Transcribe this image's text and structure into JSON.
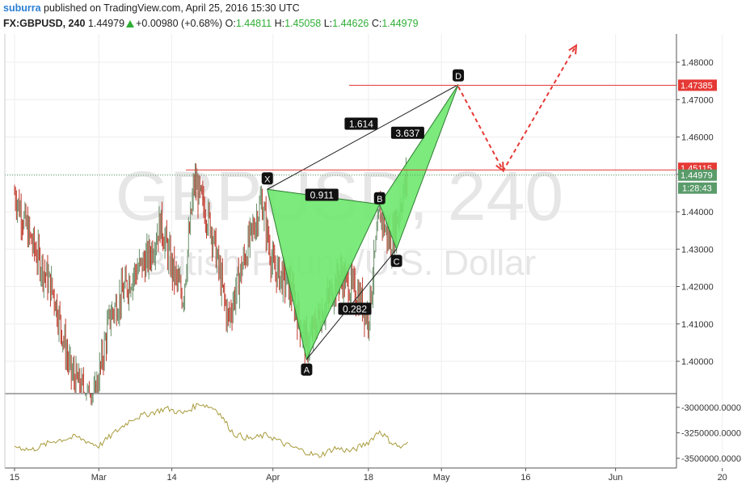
{
  "header": {
    "user": "suburra",
    "published_text": " published on TradingView.com, April 25, 2016 15:30 UTC",
    "symbol_tf": "FX:GBPUSD, 240",
    "last": "1.44979",
    "change": "+0.00980 (+0.68%)",
    "o_label": "O:",
    "o_val": "1.44811",
    "h_label": "H:",
    "h_val": "1.45058",
    "l_label": "L:",
    "l_val": "1.44626",
    "c_label": "C:",
    "c_val": "1.44979"
  },
  "watermark": {
    "symbol": "GBPUSD, 240",
    "description": "British Pound/U.S. Dollar"
  },
  "colors": {
    "up": "#2fae35",
    "candle_up": "#6b8f6b",
    "candle_down": "#c0392b",
    "pattern_fill": "#6ee86e",
    "level_line": "#e53935",
    "indicator": "#a89b3c",
    "current_price_bg": "#5a9b6a"
  },
  "chart_data": {
    "type": "candlestick",
    "symbol": "FX:GBPUSD",
    "timeframe": "240",
    "price_axis": {
      "ylim": [
        1.393,
        1.4875
      ],
      "ticks": [
        "1.48000",
        "1.47000",
        "1.46000",
        "1.45000",
        "1.44000",
        "1.43000",
        "1.42000",
        "1.41000",
        "1.40000"
      ]
    },
    "time_axis": {
      "ticks": [
        "15",
        "Mar",
        "14",
        "Apr",
        "18",
        "May",
        "16",
        "Jun",
        "20"
      ],
      "range": [
        "2016-02-15",
        "2016-06-25"
      ]
    },
    "price_path": [
      [
        "2016-02-15",
        1.445
      ],
      [
        "2016-02-18",
        1.432
      ],
      [
        "2016-02-22",
        1.418
      ],
      [
        "2016-02-25",
        1.397
      ],
      [
        "2016-02-29",
        1.388
      ],
      [
        "2016-03-03",
        1.412
      ],
      [
        "2016-03-07",
        1.423
      ],
      [
        "2016-03-10",
        1.428
      ],
      [
        "2016-03-12",
        1.437
      ],
      [
        "2016-03-14",
        1.425
      ],
      [
        "2016-03-16",
        1.417
      ],
      [
        "2016-03-18",
        1.448
      ],
      [
        "2016-03-21",
        1.436
      ],
      [
        "2016-03-24",
        1.411
      ],
      [
        "2016-03-27",
        1.428
      ],
      [
        "2016-03-30",
        1.443
      ],
      [
        "2016-04-01",
        1.425
      ],
      [
        "2016-04-04",
        1.42
      ],
      [
        "2016-04-07",
        1.404
      ],
      [
        "2016-04-10",
        1.414
      ],
      [
        "2016-04-13",
        1.423
      ],
      [
        "2016-04-16",
        1.418
      ],
      [
        "2016-04-18",
        1.412
      ],
      [
        "2016-04-20",
        1.44
      ],
      [
        "2016-04-22",
        1.431
      ],
      [
        "2016-04-25",
        1.45
      ]
    ],
    "pattern": {
      "points": [
        {
          "name": "X",
          "date": "2016-03-31",
          "price": 1.446
        },
        {
          "name": "A",
          "date": "2016-04-07",
          "price": 1.4005
        },
        {
          "name": "B",
          "date": "2016-04-20",
          "price": 1.442
        },
        {
          "name": "C",
          "date": "2016-04-23",
          "price": 1.43
        },
        {
          "name": "D",
          "date": "2016-05-04",
          "price": 1.474
        }
      ],
      "ratios": [
        {
          "label": "1.614"
        },
        {
          "label": "0.911"
        },
        {
          "label": "3.637"
        },
        {
          "label": "0.282"
        }
      ]
    },
    "levels": [
      {
        "price": 1.47385,
        "label": "1.47385"
      },
      {
        "price": 1.4512,
        "label": "1.45115"
      }
    ],
    "current_price": {
      "price": 1.44979,
      "label": "1.44979",
      "countdown": "1:28:43"
    },
    "projection": [
      {
        "date": "2016-05-04",
        "price": 1.4735
      },
      {
        "date": "2016-05-12",
        "price": 1.451
      },
      {
        "date": "2016-05-25",
        "price": 1.4845
      }
    ],
    "indicator": {
      "ticks": [
        "-3000000.0000",
        "-3250000.0000",
        "-3500000.0000"
      ],
      "ylim": [
        -3570000,
        -2870000
      ],
      "values": [
        [
          "2016-02-15",
          -3380000
        ],
        [
          "2016-02-18",
          -3420000
        ],
        [
          "2016-02-22",
          -3330000
        ],
        [
          "2016-02-26",
          -3290000
        ],
        [
          "2016-03-01",
          -3380000
        ],
        [
          "2016-03-04",
          -3240000
        ],
        [
          "2016-03-07",
          -3110000
        ],
        [
          "2016-03-10",
          -3060000
        ],
        [
          "2016-03-13",
          -3010000
        ],
        [
          "2016-03-16",
          -3060000
        ],
        [
          "2016-03-19",
          -2960000
        ],
        [
          "2016-03-22",
          -3020000
        ],
        [
          "2016-03-25",
          -3260000
        ],
        [
          "2016-03-28",
          -3310000
        ],
        [
          "2016-03-31",
          -3270000
        ],
        [
          "2016-04-03",
          -3360000
        ],
        [
          "2016-04-06",
          -3420000
        ],
        [
          "2016-04-09",
          -3480000
        ],
        [
          "2016-04-12",
          -3400000
        ],
        [
          "2016-04-15",
          -3430000
        ],
        [
          "2016-04-18",
          -3340000
        ],
        [
          "2016-04-20",
          -3230000
        ],
        [
          "2016-04-22",
          -3340000
        ],
        [
          "2016-04-24",
          -3400000
        ],
        [
          "2016-04-25",
          -3340000
        ]
      ]
    }
  }
}
